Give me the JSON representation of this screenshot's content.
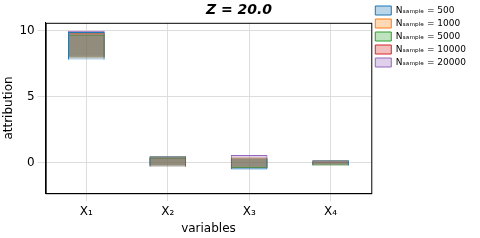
{
  "chart_data": {
    "type": "violin",
    "title": "Z = 20.0",
    "x_label": "variables",
    "y_label": "attribution",
    "categories": [
      "X₁",
      "X₂",
      "X₃",
      "X₄"
    ],
    "series": [
      {
        "name": "Nₛₐₘₚₗₑ = 500",
        "color": "#1f77b4",
        "values": [
          [
            7.8,
            9.9
          ],
          [
            -0.3,
            0.5
          ],
          [
            -0.5,
            0.4
          ],
          [
            -0.2,
            0.2
          ]
        ]
      },
      {
        "name": "Nₛₐₘₚₗₑ = 1000",
        "color": "#ff7f0e",
        "values": [
          [
            7.9,
            9.8
          ],
          [
            -0.3,
            0.5
          ],
          [
            -0.4,
            0.4
          ],
          [
            -0.2,
            0.2
          ]
        ]
      },
      {
        "name": "Nₛₐₘₚₗₑ = 5000",
        "color": "#2ca02c",
        "values": [
          [
            8.0,
            9.7
          ],
          [
            -0.2,
            0.4
          ],
          [
            -0.4,
            0.3
          ],
          [
            -0.2,
            0.1
          ]
        ]
      },
      {
        "name": "Nₛₐₘₚₗₑ = 10000",
        "color": "#d62728",
        "values": [
          [
            8.0,
            9.8
          ],
          [
            -0.2,
            0.4
          ],
          [
            -0.4,
            0.3
          ],
          [
            -0.1,
            0.1
          ]
        ]
      },
      {
        "name": "Nₛₐₘₚₗₑ = 20000",
        "color": "#9467bd",
        "values": [
          [
            8.1,
            10.0
          ],
          [
            -0.2,
            0.4
          ],
          [
            -0.3,
            0.6
          ],
          [
            -0.1,
            0.1
          ]
        ]
      }
    ],
    "ylim": [
      -2.3,
      10.6
    ],
    "yticks": [
      0,
      5,
      10
    ],
    "grid": true,
    "legend": "right"
  }
}
